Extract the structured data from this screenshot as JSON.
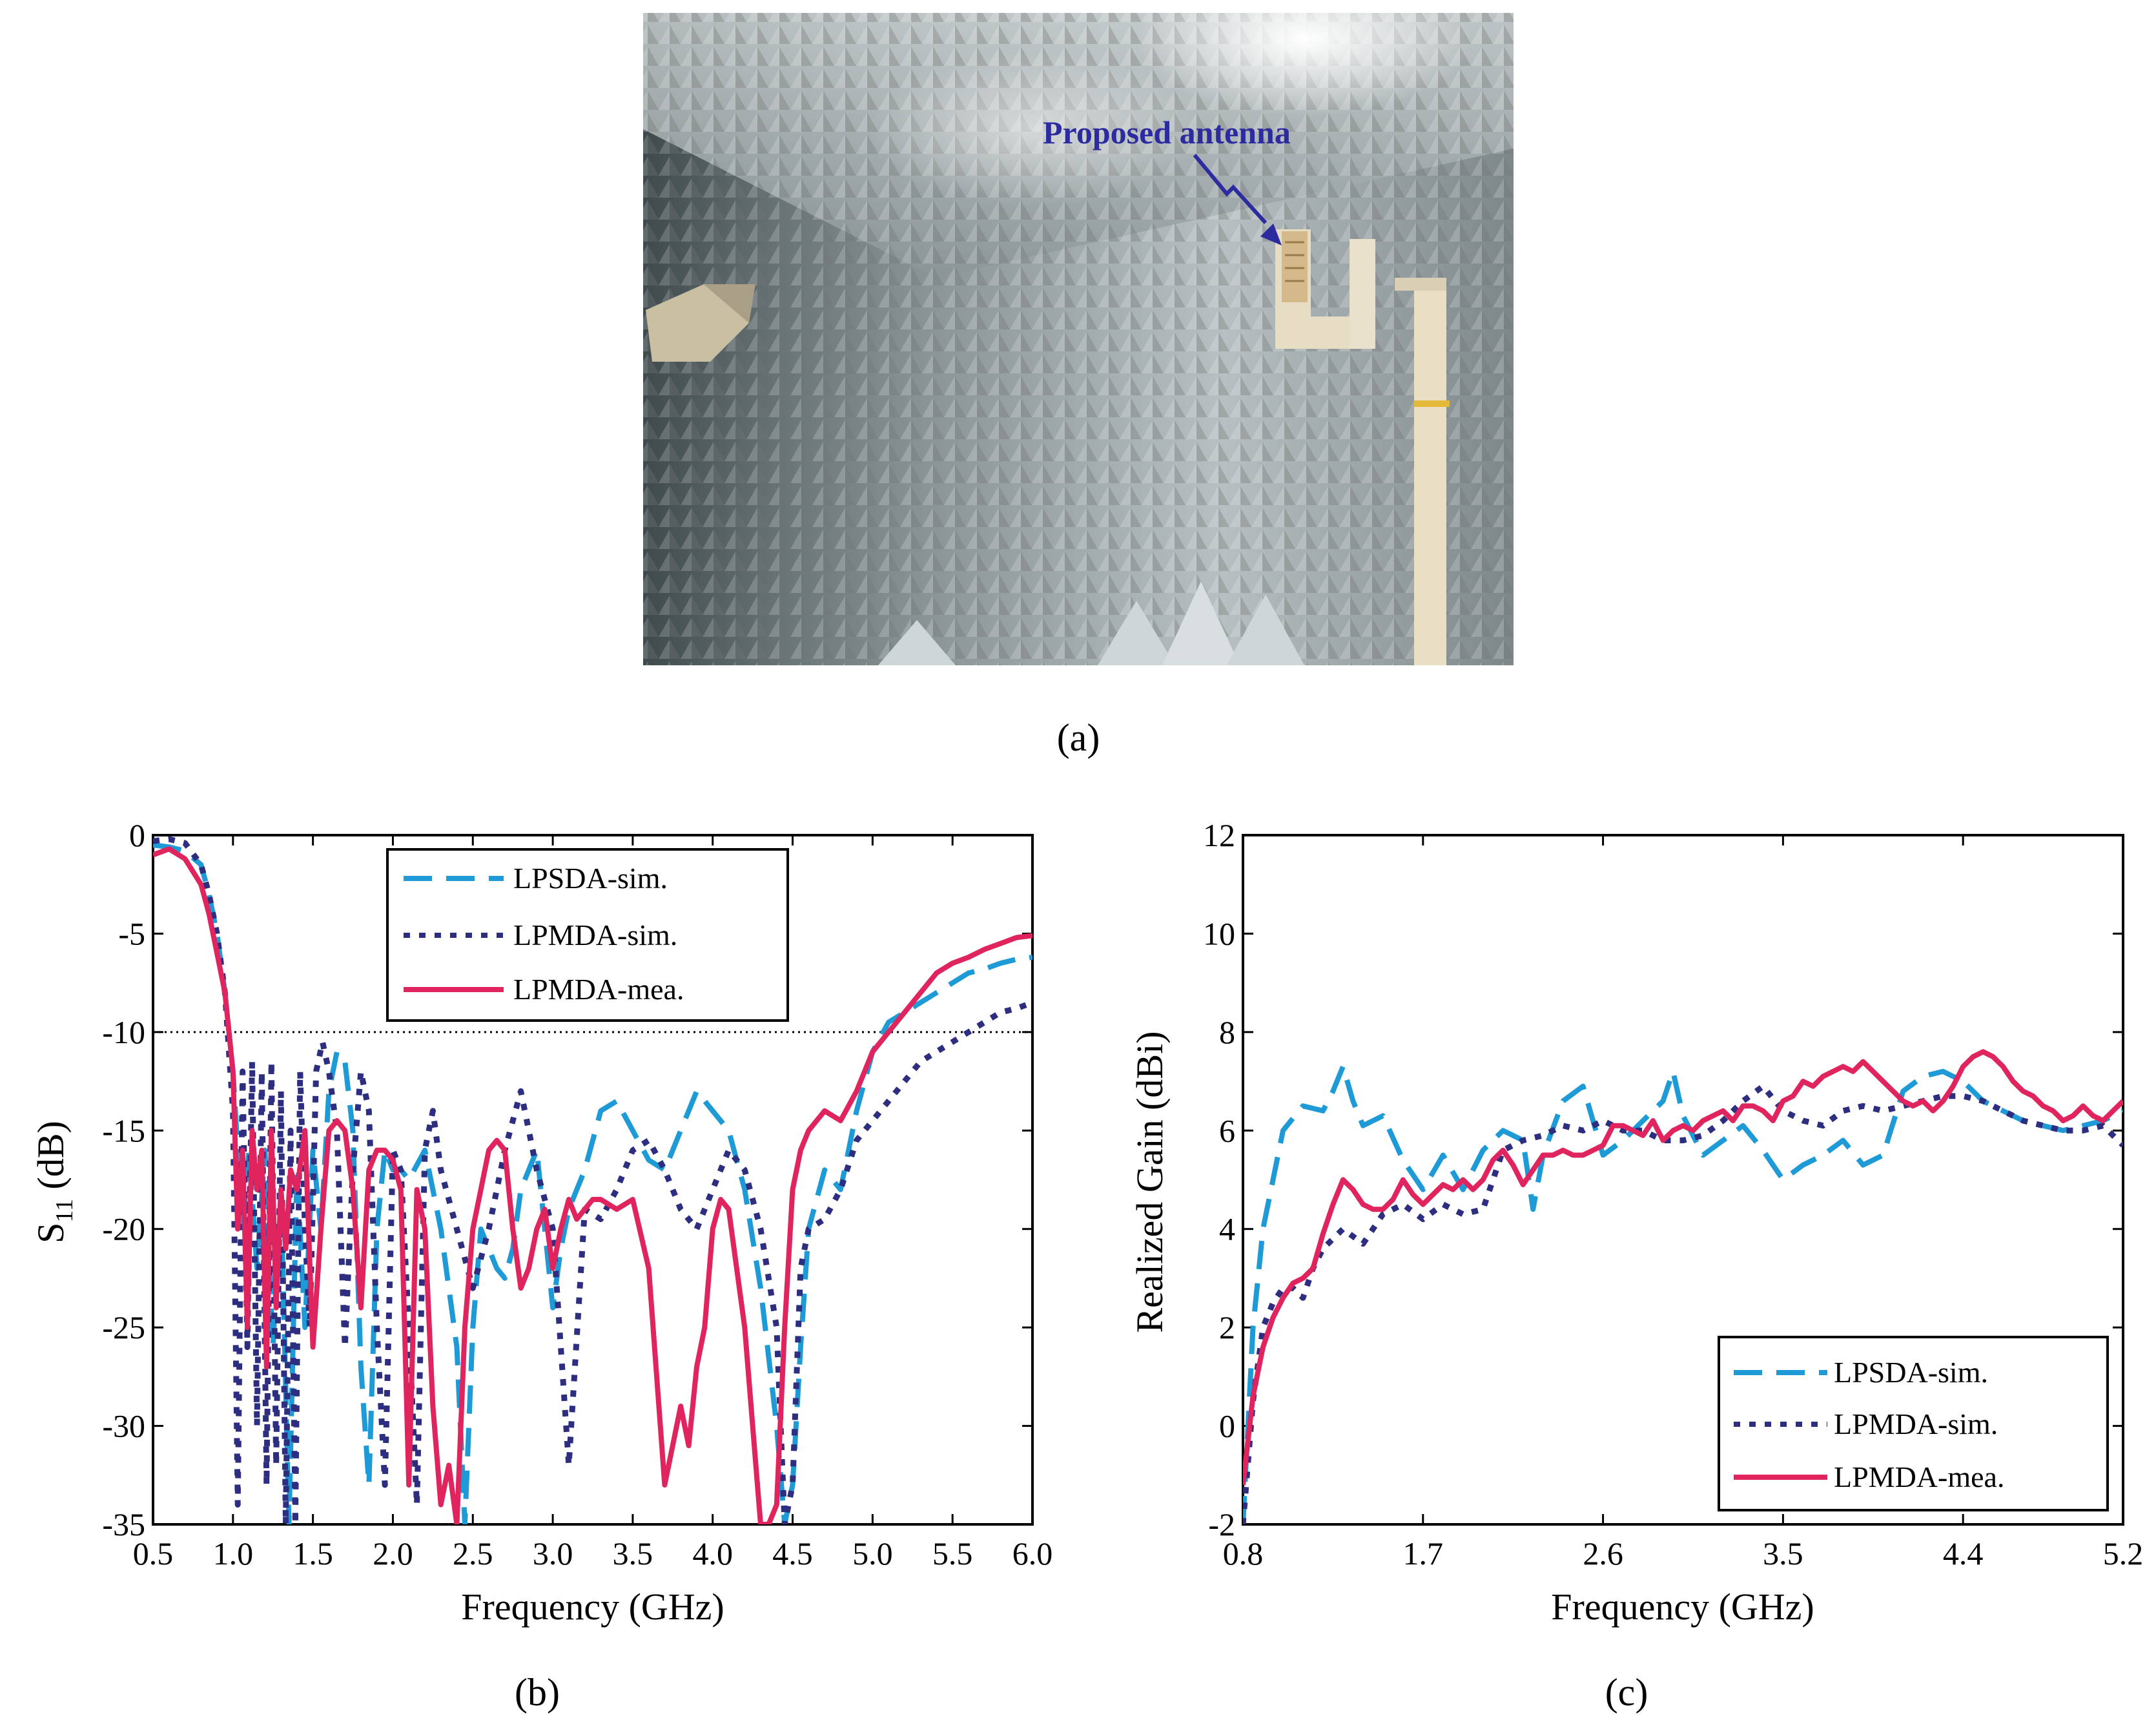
{
  "panel_a": {
    "annotation": "Proposed antenna",
    "caption": "(a)"
  },
  "colors": {
    "lpsda_sim": "#1e9bd7",
    "lpmda_sim": "#2e2e80",
    "lpmda_mea": "#e0245e",
    "annotation": "#2c2c9e"
  },
  "chart_data": [
    {
      "type": "line",
      "caption": "(b)",
      "xlabel": "Frequency (GHz)",
      "ylabel": "S11 (dB)",
      "xlim": [
        0.5,
        6.0
      ],
      "ylim": [
        -35,
        0
      ],
      "xticks": [
        "0.5",
        "1.0",
        "1.5",
        "2.0",
        "2.5",
        "3.0",
        "3.5",
        "4.0",
        "4.5",
        "5.0",
        "5.5",
        "6.0"
      ],
      "yticks": [
        "0",
        "-5",
        "-10",
        "-15",
        "-20",
        "-25",
        "-30",
        "-35"
      ],
      "legend_position": "top-center",
      "reference_line": -10,
      "series": [
        {
          "name": "LPSDA-sim.",
          "style": "dashed",
          "x": [
            0.5,
            0.6,
            0.7,
            0.8,
            0.85,
            0.9,
            0.95,
            1.0,
            1.03,
            1.06,
            1.1,
            1.15,
            1.2,
            1.25,
            1.3,
            1.35,
            1.4,
            1.45,
            1.5,
            1.55,
            1.6,
            1.65,
            1.7,
            1.75,
            1.8,
            1.85,
            1.9,
            1.95,
            2.0,
            2.05,
            2.1,
            2.2,
            2.3,
            2.4,
            2.45,
            2.5,
            2.55,
            2.6,
            2.65,
            2.7,
            2.75,
            2.8,
            2.9,
            3.0,
            3.05,
            3.1,
            3.2,
            3.3,
            3.4,
            3.5,
            3.6,
            3.7,
            3.8,
            3.9,
            4.0,
            4.1,
            4.2,
            4.3,
            4.4,
            4.45,
            4.5,
            4.55,
            4.6,
            4.7,
            4.8,
            4.9,
            5.0,
            5.1,
            5.2,
            5.3,
            5.4,
            5.5,
            5.6,
            5.7,
            5.8,
            5.9,
            6.0
          ],
          "y": [
            -0.5,
            -0.6,
            -0.8,
            -1.5,
            -3,
            -5,
            -8,
            -12,
            -16,
            -20,
            -16,
            -22,
            -16,
            -26,
            -18,
            -35,
            -17,
            -25,
            -16,
            -20,
            -13,
            -11,
            -11.5,
            -15,
            -27,
            -33,
            -20,
            -16,
            -17,
            -17,
            -17.5,
            -16,
            -20,
            -26,
            -35,
            -25,
            -20,
            -21,
            -22,
            -22.5,
            -21,
            -18,
            -16,
            -24,
            -21,
            -19,
            -17,
            -14,
            -13.5,
            -15,
            -16.5,
            -17,
            -15,
            -13,
            -14,
            -15,
            -18,
            -23,
            -30,
            -35,
            -33,
            -26,
            -20,
            -17,
            -18,
            -14,
            -11,
            -9.5,
            -9,
            -8.5,
            -8,
            -7.5,
            -7,
            -6.8,
            -6.5,
            -6.3,
            -6.2
          ]
        },
        {
          "name": "LPMDA-sim.",
          "style": "dotted",
          "x": [
            0.5,
            0.6,
            0.7,
            0.8,
            0.85,
            0.9,
            0.95,
            1.0,
            1.03,
            1.06,
            1.09,
            1.12,
            1.15,
            1.18,
            1.21,
            1.24,
            1.27,
            1.3,
            1.33,
            1.36,
            1.39,
            1.42,
            1.45,
            1.48,
            1.52,
            1.56,
            1.6,
            1.65,
            1.7,
            1.75,
            1.8,
            1.85,
            1.9,
            1.95,
            2.0,
            2.05,
            2.1,
            2.15,
            2.2,
            2.25,
            2.3,
            2.4,
            2.5,
            2.6,
            2.7,
            2.8,
            2.9,
            3.0,
            3.1,
            3.2,
            3.3,
            3.4,
            3.5,
            3.6,
            3.7,
            3.8,
            3.9,
            4.0,
            4.1,
            4.2,
            4.3,
            4.4,
            4.45,
            4.5,
            4.55,
            4.6,
            4.7,
            4.8,
            4.9,
            5.0,
            5.1,
            5.2,
            5.3,
            5.4,
            5.5,
            5.6,
            5.7,
            5.8,
            5.9,
            6.0
          ],
          "y": [
            -0.3,
            -0.2,
            -0.4,
            -1.5,
            -3,
            -5,
            -8,
            -14,
            -34,
            -12,
            -26,
            -11.5,
            -30,
            -12,
            -33,
            -11.5,
            -32,
            -13,
            -35,
            -15,
            -35,
            -12,
            -20,
            -25,
            -12,
            -10.5,
            -12,
            -15,
            -26,
            -17,
            -12,
            -14,
            -25,
            -33,
            -16,
            -17,
            -25,
            -34,
            -16,
            -14,
            -17,
            -20,
            -23,
            -20,
            -16,
            -13,
            -17,
            -20,
            -32,
            -19,
            -19.5,
            -18,
            -16,
            -15.5,
            -17,
            -19,
            -20,
            -18,
            -16,
            -17,
            -20,
            -25,
            -35,
            -33,
            -22,
            -20,
            -19.5,
            -18,
            -15.5,
            -14.5,
            -13.5,
            -12.5,
            -11.5,
            -11,
            -10.5,
            -10,
            -9.5,
            -9,
            -8.8,
            -8.5
          ]
        },
        {
          "name": "LPMDA-mea.",
          "style": "solid",
          "x": [
            0.5,
            0.6,
            0.7,
            0.8,
            0.85,
            0.9,
            0.95,
            1.0,
            1.03,
            1.06,
            1.09,
            1.12,
            1.15,
            1.18,
            1.21,
            1.24,
            1.27,
            1.3,
            1.33,
            1.36,
            1.4,
            1.45,
            1.5,
            1.55,
            1.6,
            1.65,
            1.7,
            1.75,
            1.8,
            1.85,
            1.9,
            1.95,
            2.0,
            2.05,
            2.1,
            2.15,
            2.2,
            2.25,
            2.3,
            2.35,
            2.4,
            2.45,
            2.5,
            2.55,
            2.6,
            2.65,
            2.7,
            2.75,
            2.8,
            2.85,
            2.9,
            2.95,
            3.0,
            3.05,
            3.1,
            3.15,
            3.2,
            3.25,
            3.3,
            3.4,
            3.5,
            3.6,
            3.7,
            3.8,
            3.85,
            3.9,
            3.95,
            4.0,
            4.05,
            4.1,
            4.2,
            4.3,
            4.35,
            4.4,
            4.45,
            4.5,
            4.55,
            4.6,
            4.7,
            4.8,
            4.9,
            5.0,
            5.1,
            5.2,
            5.3,
            5.4,
            5.5,
            5.6,
            5.7,
            5.8,
            5.9,
            6.0
          ],
          "y": [
            -1.0,
            -0.7,
            -1.2,
            -2.5,
            -4,
            -6,
            -8,
            -12,
            -20,
            -16,
            -25,
            -15,
            -18,
            -16,
            -27,
            -15,
            -24,
            -18,
            -21,
            -17,
            -18,
            -15,
            -26,
            -20,
            -15,
            -14.5,
            -15,
            -18,
            -24,
            -17,
            -16,
            -16,
            -16.5,
            -18,
            -33,
            -18,
            -20,
            -29,
            -34,
            -32,
            -35,
            -25,
            -20,
            -18,
            -16,
            -15.5,
            -16,
            -20,
            -23,
            -22,
            -20,
            -19,
            -22,
            -20,
            -18.5,
            -19.5,
            -19,
            -18.5,
            -18.5,
            -19,
            -18.5,
            -22,
            -33,
            -29,
            -31,
            -27,
            -25,
            -20,
            -18.5,
            -19,
            -25,
            -35,
            -35,
            -34,
            -25,
            -18,
            -16,
            -15,
            -14,
            -14.5,
            -13,
            -11,
            -10,
            -9,
            -8,
            -7,
            -6.5,
            -6.2,
            -5.8,
            -5.5,
            -5.2,
            -5.1
          ]
        }
      ]
    },
    {
      "type": "line",
      "caption": "(c)",
      "xlabel": "Frequency (GHz)",
      "ylabel": "Realized Gain (dBi)",
      "xlim": [
        0.8,
        5.2
      ],
      "ylim": [
        -2,
        12
      ],
      "xticks": [
        "0.8",
        "1.7",
        "2.6",
        "3.5",
        "4.4",
        "5.2"
      ],
      "xtick_values": [
        0.8,
        1.7,
        2.6,
        3.5,
        4.4,
        5.2
      ],
      "yticks": [
        "-2",
        "0",
        "2",
        "4",
        "6",
        "8",
        "10",
        "12"
      ],
      "legend_position": "bottom-right",
      "series": [
        {
          "name": "LPSDA-sim.",
          "style": "dashed",
          "x": [
            0.8,
            0.85,
            0.9,
            0.95,
            1.0,
            1.1,
            1.2,
            1.25,
            1.3,
            1.35,
            1.4,
            1.5,
            1.6,
            1.7,
            1.8,
            1.9,
            2.0,
            2.1,
            2.2,
            2.25,
            2.3,
            2.4,
            2.5,
            2.6,
            2.7,
            2.8,
            2.9,
            2.95,
            3.0,
            3.1,
            3.2,
            3.3,
            3.4,
            3.5,
            3.6,
            3.7,
            3.8,
            3.9,
            4.0,
            4.1,
            4.2,
            4.3,
            4.4,
            4.5,
            4.6,
            4.7,
            4.8,
            4.9,
            5.0,
            5.1,
            5.2
          ],
          "y": [
            -2,
            2,
            4,
            5,
            6,
            6.5,
            6.4,
            6.8,
            7.3,
            6.6,
            6.1,
            6.3,
            5.4,
            4.8,
            5.5,
            4.8,
            5.6,
            6.0,
            5.8,
            4.4,
            5.5,
            6.6,
            6.9,
            5.5,
            5.8,
            6.2,
            6.6,
            7.2,
            6.3,
            5.5,
            5.8,
            6.1,
            5.6,
            5.0,
            5.3,
            5.5,
            5.8,
            5.3,
            5.5,
            6.8,
            7.1,
            7.2,
            7.0,
            6.6,
            6.4,
            6.2,
            6.1,
            6.0,
            6.1,
            6.2,
            6.4
          ]
        },
        {
          "name": "LPMDA-sim.",
          "style": "dotted",
          "x": [
            0.8,
            0.85,
            0.9,
            0.95,
            1.0,
            1.05,
            1.1,
            1.15,
            1.2,
            1.3,
            1.4,
            1.5,
            1.6,
            1.7,
            1.8,
            1.9,
            2.0,
            2.1,
            2.2,
            2.3,
            2.4,
            2.5,
            2.6,
            2.7,
            2.8,
            2.9,
            3.0,
            3.1,
            3.2,
            3.3,
            3.4,
            3.5,
            3.6,
            3.7,
            3.8,
            3.9,
            4.0,
            4.1,
            4.2,
            4.3,
            4.4,
            4.5,
            4.6,
            4.7,
            4.8,
            4.9,
            5.0,
            5.1,
            5.2
          ],
          "y": [
            -2,
            0.5,
            2,
            2.5,
            2.8,
            2.8,
            2.6,
            3.2,
            3.6,
            4.0,
            3.7,
            4.3,
            4.5,
            4.2,
            4.5,
            4.3,
            4.4,
            5.6,
            5.8,
            5.9,
            6.1,
            6.0,
            6.2,
            6.0,
            6.0,
            5.8,
            5.8,
            5.9,
            6.2,
            6.6,
            6.9,
            6.4,
            6.2,
            6.1,
            6.4,
            6.5,
            6.4,
            6.5,
            6.6,
            6.7,
            6.7,
            6.6,
            6.4,
            6.2,
            6.1,
            6.0,
            6.0,
            6.1,
            5.7
          ]
        },
        {
          "name": "LPMDA-mea.",
          "style": "solid",
          "x": [
            0.8,
            0.85,
            0.9,
            0.95,
            1.0,
            1.05,
            1.1,
            1.15,
            1.2,
            1.25,
            1.3,
            1.35,
            1.4,
            1.45,
            1.5,
            1.55,
            1.6,
            1.65,
            1.7,
            1.75,
            1.8,
            1.85,
            1.9,
            1.95,
            2.0,
            2.05,
            2.1,
            2.15,
            2.2,
            2.25,
            2.3,
            2.35,
            2.4,
            2.45,
            2.5,
            2.55,
            2.6,
            2.65,
            2.7,
            2.75,
            2.8,
            2.85,
            2.9,
            2.95,
            3.0,
            3.05,
            3.1,
            3.15,
            3.2,
            3.25,
            3.3,
            3.35,
            3.4,
            3.45,
            3.5,
            3.55,
            3.6,
            3.65,
            3.7,
            3.75,
            3.8,
            3.85,
            3.9,
            3.95,
            4.0,
            4.05,
            4.1,
            4.15,
            4.2,
            4.25,
            4.3,
            4.35,
            4.4,
            4.45,
            4.5,
            4.55,
            4.6,
            4.65,
            4.7,
            4.75,
            4.8,
            4.85,
            4.9,
            4.95,
            5.0,
            5.05,
            5.1,
            5.15,
            5.2
          ],
          "y": [
            -1.2,
            0.6,
            1.6,
            2.2,
            2.6,
            2.9,
            3.0,
            3.2,
            3.9,
            4.5,
            5.0,
            4.8,
            4.5,
            4.4,
            4.4,
            4.6,
            5.0,
            4.7,
            4.5,
            4.7,
            4.9,
            4.8,
            5.0,
            4.8,
            5.0,
            5.4,
            5.6,
            5.3,
            4.9,
            5.2,
            5.5,
            5.5,
            5.6,
            5.5,
            5.5,
            5.6,
            5.7,
            6.1,
            6.1,
            6.0,
            5.9,
            6.2,
            5.8,
            6.0,
            6.1,
            6.0,
            6.2,
            6.3,
            6.4,
            6.2,
            6.5,
            6.5,
            6.4,
            6.2,
            6.6,
            6.7,
            7.0,
            6.9,
            7.1,
            7.2,
            7.3,
            7.2,
            7.4,
            7.2,
            7.0,
            6.8,
            6.6,
            6.5,
            6.6,
            6.4,
            6.6,
            6.9,
            7.3,
            7.5,
            7.6,
            7.5,
            7.3,
            7.0,
            6.8,
            6.7,
            6.5,
            6.4,
            6.2,
            6.3,
            6.5,
            6.3,
            6.2,
            6.4,
            6.6
          ]
        }
      ]
    }
  ]
}
